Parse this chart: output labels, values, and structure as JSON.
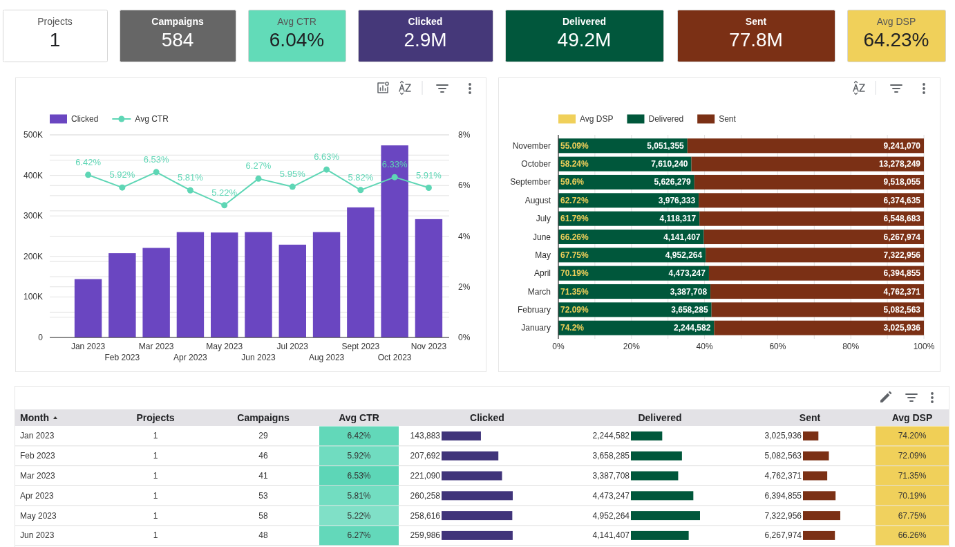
{
  "chart_data": [
    {
      "type": "other",
      "categories": [
        "Projects",
        "Campaigns",
        "Avg CTR",
        "Clicked",
        "Delivered",
        "Sent",
        "Avg DSP"
      ],
      "value_labels": [
        "1",
        "584",
        "6.04%",
        "2.9M",
        "49.2M",
        "77.8M",
        "64.23%"
      ],
      "colors": [
        "#ffffff",
        "#666666",
        "#62dbb8",
        "#453879",
        "#01573c",
        "#7b3015",
        "#f0d05a"
      ]
    },
    {
      "type": "bar",
      "categories": [
        "Jan 2023",
        "Feb 2023",
        "Mar 2023",
        "Apr 2023",
        "May 2023",
        "Jun 2023",
        "Jul 2023",
        "Aug 2023",
        "Sept 2023",
        "Oct 2023",
        "Nov 2023"
      ],
      "series": [
        {
          "name": "Clicked",
          "type": "bar",
          "color": "#6a46c1",
          "values": [
            144000,
            208000,
            221000,
            260000,
            259000,
            260000,
            229000,
            260000,
            321000,
            474000,
            292000
          ]
        },
        {
          "name": "Avg CTR",
          "type": "line",
          "axis": "y2",
          "color": "#5ed6b5",
          "values": [
            6.42,
            5.92,
            6.53,
            5.81,
            5.22,
            6.27,
            5.95,
            6.63,
            5.82,
            6.33,
            5.91
          ],
          "value_labels": [
            "6.42%",
            "5.92%",
            "6.53%",
            "5.81%",
            "5.22%",
            "6.27%",
            "5.95%",
            "6.63%",
            "5.82%",
            "6.33%",
            "5.91%"
          ]
        }
      ],
      "ylim": [
        0,
        500000
      ],
      "yticks": [
        {
          "value": 0,
          "label": "0"
        },
        {
          "value": 50000,
          "label": null
        },
        {
          "value": 100000,
          "label": "100K"
        },
        {
          "value": 150000,
          "label": null
        },
        {
          "value": 200000,
          "label": "200K"
        },
        {
          "value": 250000,
          "label": null
        },
        {
          "value": 300000,
          "label": "300K"
        },
        {
          "value": 350000,
          "label": null
        },
        {
          "value": 400000,
          "label": "400K"
        },
        {
          "value": 450000,
          "label": null
        },
        {
          "value": 500000,
          "label": "500K"
        }
      ],
      "y2lim": [
        0,
        8
      ],
      "y2ticks": [
        {
          "value": 0,
          "label": "0%"
        },
        {
          "value": 1,
          "label": null
        },
        {
          "value": 2,
          "label": "2%"
        },
        {
          "value": 3,
          "label": null
        },
        {
          "value": 4,
          "label": "4%"
        },
        {
          "value": 5,
          "label": null
        },
        {
          "value": 6,
          "label": "6%"
        },
        {
          "value": 7,
          "label": null
        },
        {
          "value": 8,
          "label": "8%"
        }
      ],
      "grid": "y",
      "legend": "top left",
      "marker": "circle"
    },
    {
      "type": "bar",
      "orientation": "horizontal",
      "stacked": true,
      "categories": [
        "November",
        "October",
        "September",
        "August",
        "July",
        "June",
        "May",
        "April",
        "March",
        "February",
        "January"
      ],
      "series": [
        {
          "name": "Avg DSP",
          "color": "#f0d05a",
          "values": [
            0,
            0,
            0,
            0,
            0,
            0,
            0,
            0,
            0,
            0,
            0
          ]
        },
        {
          "name": "Delivered",
          "color": "#00573b",
          "values": [
            35.3,
            36.4,
            37.2,
            38.4,
            38.6,
            39.8,
            40.3,
            41.2,
            41.6,
            41.9,
            42.6
          ]
        },
        {
          "name": "Sent",
          "color": "#7b3015",
          "values": [
            64.7,
            63.6,
            62.8,
            61.6,
            61.4,
            60.2,
            59.7,
            58.8,
            58.4,
            58.1,
            57.4
          ]
        }
      ],
      "xlim": [
        0,
        100
      ],
      "xticks": [
        {
          "value": 0,
          "label": "0%"
        },
        {
          "value": 10,
          "label": null
        },
        {
          "value": 20,
          "label": "20%"
        },
        {
          "value": 30,
          "label": null
        },
        {
          "value": 40,
          "label": "40%"
        },
        {
          "value": 50,
          "label": null
        },
        {
          "value": 60,
          "label": "60%"
        },
        {
          "value": 70,
          "label": null
        },
        {
          "value": 80,
          "label": "80%"
        },
        {
          "value": 90,
          "label": null
        },
        {
          "value": 100,
          "label": "100%"
        }
      ],
      "grid": "x",
      "legend": "top left",
      "annotations": [
        {
          "text": "55.09%",
          "x": 0,
          "y": "November"
        },
        {
          "text": "5,051,355",
          "x": 35.3,
          "y": "November"
        },
        {
          "text": "9,241,070",
          "x": 100,
          "y": "November"
        },
        {
          "text": "58.24%",
          "x": 0,
          "y": "October"
        },
        {
          "text": "7,610,240",
          "x": 36.4,
          "y": "October"
        },
        {
          "text": "13,278,249",
          "x": 100,
          "y": "October"
        },
        {
          "text": "59.6%",
          "x": 0,
          "y": "September"
        },
        {
          "text": "5,626,279",
          "x": 37.2,
          "y": "September"
        },
        {
          "text": "9,518,055",
          "x": 100,
          "y": "September"
        },
        {
          "text": "62.72%",
          "x": 0,
          "y": "August"
        },
        {
          "text": "3,976,333",
          "x": 38.4,
          "y": "August"
        },
        {
          "text": "6,374,635",
          "x": 100,
          "y": "August"
        },
        {
          "text": "61.79%",
          "x": 0,
          "y": "July"
        },
        {
          "text": "4,118,317",
          "x": 38.6,
          "y": "July"
        },
        {
          "text": "6,548,683",
          "x": 100,
          "y": "July"
        },
        {
          "text": "66.26%",
          "x": 0,
          "y": "June"
        },
        {
          "text": "4,141,407",
          "x": 39.8,
          "y": "June"
        },
        {
          "text": "6,267,974",
          "x": 100,
          "y": "June"
        },
        {
          "text": "67.75%",
          "x": 0,
          "y": "May"
        },
        {
          "text": "4,952,264",
          "x": 40.3,
          "y": "May"
        },
        {
          "text": "7,322,956",
          "x": 100,
          "y": "May"
        },
        {
          "text": "70.19%",
          "x": 0,
          "y": "April"
        },
        {
          "text": "4,473,247",
          "x": 41.2,
          "y": "April"
        },
        {
          "text": "6,394,855",
          "x": 100,
          "y": "April"
        },
        {
          "text": "71.35%",
          "x": 0,
          "y": "March"
        },
        {
          "text": "3,387,708",
          "x": 41.6,
          "y": "March"
        },
        {
          "text": "4,762,371",
          "x": 100,
          "y": "March"
        },
        {
          "text": "72.09%",
          "x": 0,
          "y": "February"
        },
        {
          "text": "3,658,285",
          "x": 41.9,
          "y": "February"
        },
        {
          "text": "5,082,563",
          "x": 100,
          "y": "February"
        },
        {
          "text": "74.2%",
          "x": 0,
          "y": "January"
        },
        {
          "text": "2,244,582",
          "x": 42.6,
          "y": "January"
        },
        {
          "text": "3,025,936",
          "x": 100,
          "y": "January"
        }
      ]
    },
    {
      "type": "other",
      "ylabel": "Month",
      "categories": [
        "Jan 2023",
        "Feb 2023",
        "Mar 2023",
        "Apr 2023",
        "May 2023",
        "Jun 2023"
      ],
      "series": [
        {
          "name": "Projects",
          "values": [
            1,
            1,
            1,
            1,
            1,
            1
          ],
          "value_labels": [
            "1",
            "1",
            "1",
            "1",
            "1",
            "1"
          ]
        },
        {
          "name": "Campaigns",
          "values": [
            29,
            46,
            41,
            53,
            58,
            48
          ],
          "value_labels": [
            "29",
            "46",
            "41",
            "53",
            "58",
            "48"
          ]
        },
        {
          "name": "Avg CTR",
          "type": "heatmap",
          "colors": [
            "#62d8b9",
            "#70dcc0",
            "#5dd6b7",
            "#72ddc1",
            "#80e0c7",
            "#63d8ba"
          ],
          "values": [
            6.42,
            5.92,
            6.53,
            5.81,
            5.22,
            6.27
          ],
          "value_labels": [
            "6.42%",
            "5.92%",
            "6.53%",
            "5.81%",
            "5.22%",
            "6.27%"
          ]
        },
        {
          "name": "Clicked",
          "type": "bar",
          "colors": [
            "#40347a",
            "#40347a",
            "#40347a",
            "#40347a",
            "#40347a",
            "#40347a"
          ],
          "values": [
            143883,
            207692,
            221090,
            260258,
            258616,
            259986
          ],
          "value_labels": [
            "143,883",
            "207,692",
            "221,090",
            "260,258",
            "258,616",
            "259,986"
          ]
        },
        {
          "name": "Delivered",
          "type": "bar",
          "colors": [
            "#00573b",
            "#00573b",
            "#00573b",
            "#00573b",
            "#00573b",
            "#00573b"
          ],
          "values": [
            2244582,
            3658285,
            3387708,
            4473247,
            4952264,
            4141407
          ],
          "value_labels": [
            "2,244,582",
            "3,658,285",
            "3,387,708",
            "4,473,247",
            "4,952,264",
            "4,141,407"
          ]
        },
        {
          "name": "Sent",
          "type": "bar",
          "colors": [
            "#7b3015",
            "#7b3015",
            "#7b3015",
            "#7b3015",
            "#7b3015",
            "#7b3015"
          ],
          "values": [
            3025936,
            5082563,
            4762371,
            6394855,
            7322956,
            6267974
          ],
          "value_labels": [
            "3,025,936",
            "5,082,563",
            "4,762,371",
            "6,394,855",
            "7,322,956",
            "6,267,974"
          ]
        },
        {
          "name": "Avg DSP",
          "type": "heatmap",
          "colors": [
            "#f0cf56",
            "#f0d05a",
            "#f0d05a",
            "#f0d05b",
            "#f0d15e",
            "#f0d25f"
          ],
          "values": [
            74.2,
            72.09,
            71.35,
            70.19,
            67.75,
            66.26
          ],
          "value_labels": [
            "74.20%",
            "72.09%",
            "71.35%",
            "70.19%",
            "67.75%",
            "66.26%"
          ]
        }
      ]
    }
  ]
}
